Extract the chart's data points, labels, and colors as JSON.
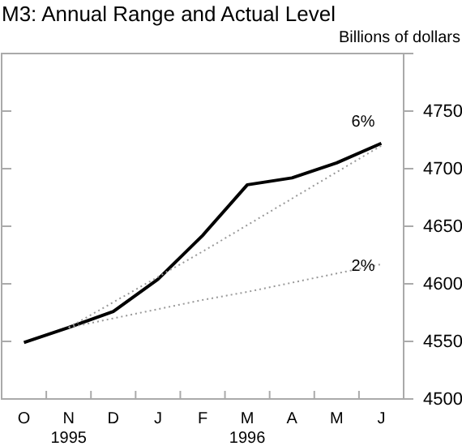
{
  "chart_data": {
    "type": "line",
    "title": "M3: Annual Range and Actual Level",
    "ylabel": "Billions of dollars",
    "categories": [
      "O",
      "N",
      "D",
      "J",
      "F",
      "M",
      "A",
      "M",
      "J"
    ],
    "ylim": [
      4500,
      4800
    ],
    "yticks": [
      4500,
      4550,
      4600,
      4650,
      4700,
      4750
    ],
    "series": [
      {
        "color": "#000000",
        "line_style": "solid",
        "values": [
          4549,
          4562,
          4576,
          4604,
          4642,
          4686,
          4692,
          4705,
          4722
        ]
      },
      {
        "name": "6%",
        "color": "#999999",
        "line_style": "dotted",
        "values": [
          null,
          4562,
          4584,
          4606,
          4628,
          4651,
          4674,
          4697,
          4720
        ]
      },
      {
        "name": "2%",
        "color": "#999999",
        "line_style": "dotted",
        "values": [
          null,
          4562,
          4570,
          4578,
          4586,
          4593,
          4601,
          4609,
          4617
        ]
      }
    ],
    "annotations": [
      "1995",
      "1996"
    ],
    "grid": false,
    "marker": "none"
  }
}
